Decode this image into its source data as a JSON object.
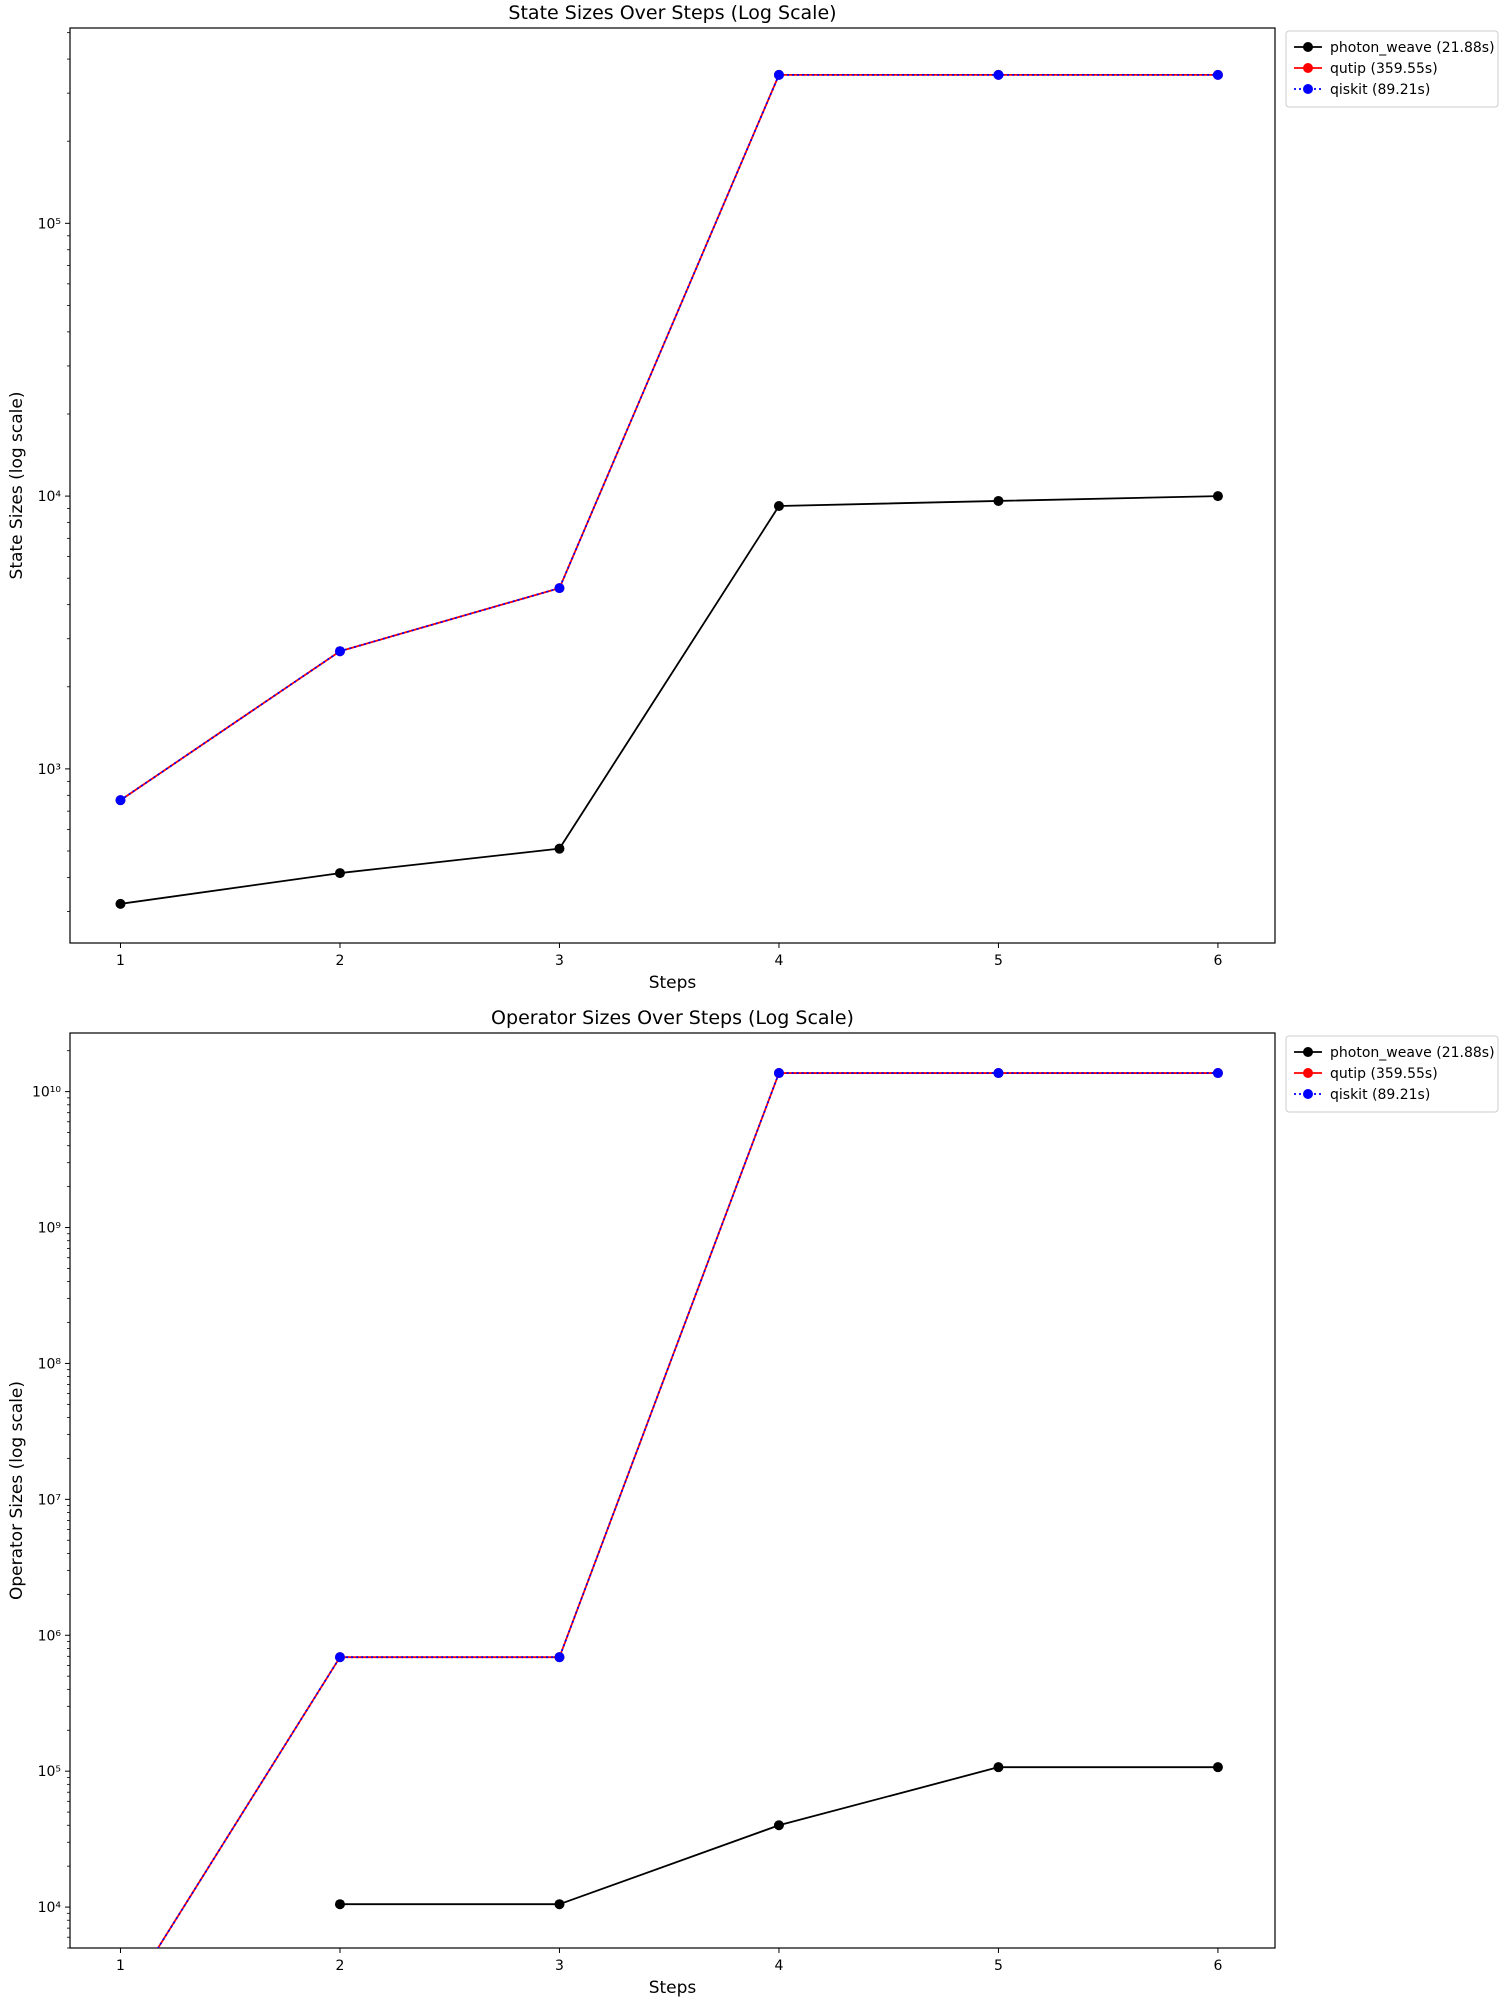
{
  "chart_data": [
    {
      "type": "line",
      "title": "State Sizes Over Steps (Log Scale)",
      "xlabel": "Steps",
      "ylabel": "State Sizes (log scale)",
      "yscale": "log",
      "x": [
        1,
        2,
        3,
        4,
        5,
        6
      ],
      "xlim": [
        0.77,
        6.26
      ],
      "ylim": [
        230,
        520000
      ],
      "yticks": [
        {
          "value": 1000,
          "label": "10³"
        },
        {
          "value": 10000,
          "label": "10⁴"
        },
        {
          "value": 100000,
          "label": "10⁵"
        }
      ],
      "grid": false,
      "legend_position": "outside upper right",
      "series": [
        {
          "name": "photon_weave (21.88s)",
          "color": "#000000",
          "linestyle": "solid",
          "marker": "circle",
          "values": [
            320,
            415,
            510,
            9200,
            9600,
            10000
          ]
        },
        {
          "name": "qutip (359.55s)",
          "color": "#ff0000",
          "linestyle": "solid",
          "marker": "circle",
          "values": [
            768,
            2700,
            4600,
            350000,
            350000,
            350000
          ]
        },
        {
          "name": "qiskit (89.21s)",
          "color": "#0000ff",
          "linestyle": "dotted",
          "marker": "circle",
          "values": [
            768,
            2700,
            4600,
            350000,
            350000,
            350000
          ]
        }
      ]
    },
    {
      "type": "line",
      "title": "Operator Sizes Over Steps (Log Scale)",
      "xlabel": "Steps",
      "ylabel": "Operator Sizes (log scale)",
      "yscale": "log",
      "x": [
        1,
        2,
        3,
        4,
        5,
        6
      ],
      "xlim": [
        0.77,
        6.26
      ],
      "ylim": [
        5000,
        27000000000
      ],
      "yticks": [
        {
          "value": 10000,
          "label": "10⁴"
        },
        {
          "value": 100000,
          "label": "10⁵"
        },
        {
          "value": 1000000,
          "label": "10⁶"
        },
        {
          "value": 10000000,
          "label": "10⁷"
        },
        {
          "value": 100000000,
          "label": "10⁸"
        },
        {
          "value": 1000000000,
          "label": "10⁹"
        },
        {
          "value": 10000000000,
          "label": "10¹⁰"
        }
      ],
      "grid": false,
      "legend_position": "outside upper right",
      "series": [
        {
          "name": "photon_weave (21.88s)",
          "color": "#000000",
          "linestyle": "solid",
          "marker": "circle",
          "values": [
            null,
            10500,
            10500,
            40000,
            107000,
            107000
          ]
        },
        {
          "name": "qutip (359.55s)",
          "color": "#ff0000",
          "linestyle": "solid",
          "marker": "circle",
          "values": [
            0,
            690000,
            690000,
            13700000000,
            13700000000,
            13700000000
          ]
        },
        {
          "name": "qiskit (89.21s)",
          "color": "#0000ff",
          "linestyle": "dotted",
          "marker": "circle",
          "values": [
            0,
            690000,
            690000,
            13700000000,
            13700000000,
            13700000000
          ]
        }
      ]
    }
  ]
}
